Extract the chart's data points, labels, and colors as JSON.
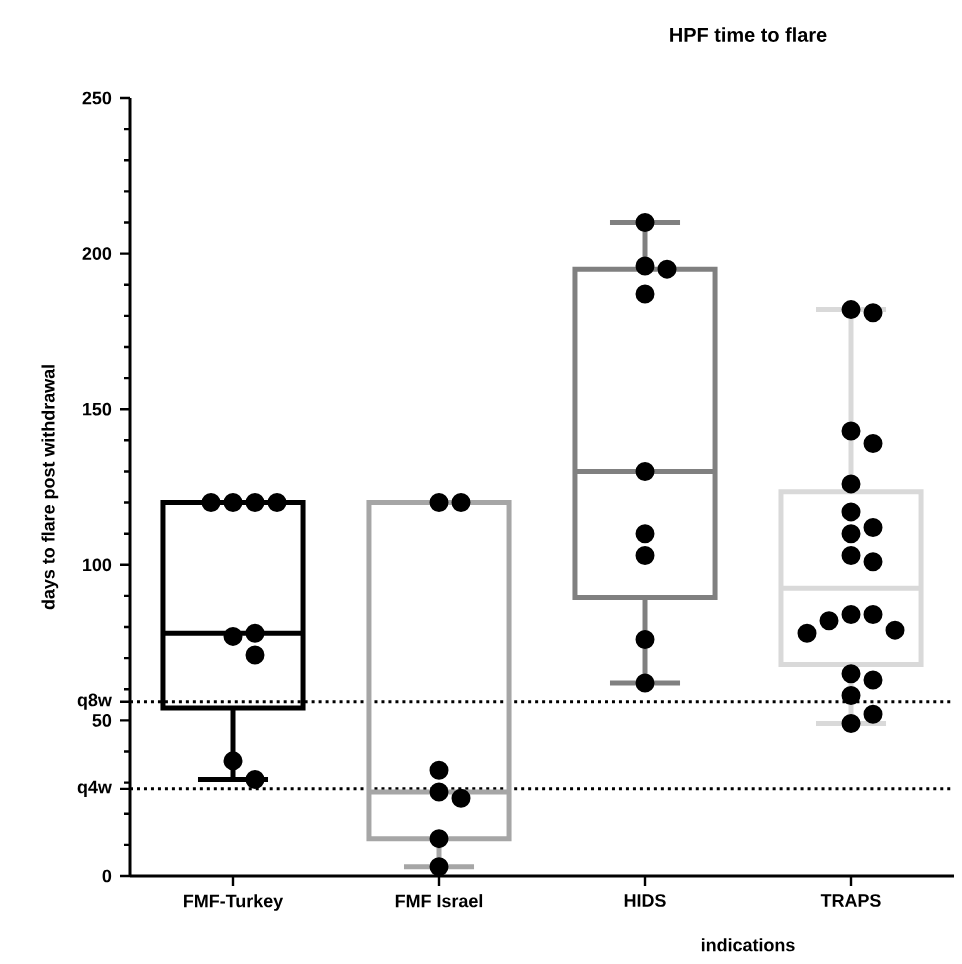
{
  "chart_data": {
    "type": "box",
    "title": "HPF time to flare",
    "xlabel": "indications",
    "ylabel": "days to flare post withdrawal",
    "categories": [
      "FMF-Turkey",
      "FMF Israel",
      "HIDS",
      "TRAPS"
    ],
    "ylim": [
      0,
      250
    ],
    "yticks": [
      0,
      {
        "value": 10,
        "label": null
      },
      {
        "value": 20,
        "label": null
      },
      {
        "value": 28,
        "label": "q4w"
      },
      {
        "value": 30,
        "label": null
      },
      {
        "value": 40,
        "label": null
      },
      50,
      {
        "value": 56,
        "label": "q8w"
      },
      {
        "value": 60,
        "label": null
      },
      {
        "value": 70,
        "label": null
      },
      {
        "value": 80,
        "label": null
      },
      {
        "value": 90,
        "label": null
      },
      100,
      {
        "value": 110,
        "label": null
      },
      {
        "value": 120,
        "label": null
      },
      {
        "value": 130,
        "label": null
      },
      {
        "value": 140,
        "label": null
      },
      150,
      {
        "value": 160,
        "label": null
      },
      {
        "value": 170,
        "label": null
      },
      {
        "value": 180,
        "label": null
      },
      {
        "value": 190,
        "label": null
      },
      200,
      {
        "value": 210,
        "label": null
      },
      {
        "value": 220,
        "label": null
      },
      {
        "value": 230,
        "label": null
      },
      {
        "value": 240,
        "label": null
      },
      250
    ],
    "series": [
      {
        "type": "box",
        "colors": [
          "#000000",
          "#a6a6a6",
          "#808080",
          "#d9d9d9"
        ],
        "boxes": [
          {
            "low": 31,
            "q1": 54,
            "median": 78,
            "q3": 120,
            "high": 120
          },
          {
            "low": 3,
            "q1": 12,
            "median": 27,
            "q3": 120,
            "high": 120
          },
          {
            "low": 62,
            "q1": 89.5,
            "median": 130,
            "q3": 195,
            "high": 210
          },
          {
            "low": 49,
            "q1": 68,
            "median": 92.5,
            "q3": 123.5,
            "high": 182
          }
        ]
      },
      {
        "type": "scatter",
        "color": "#000000",
        "x": [
          "FMF-Turkey",
          "FMF-Turkey",
          "FMF-Turkey",
          "FMF-Turkey",
          "FMF-Turkey",
          "FMF-Turkey",
          "FMF-Turkey",
          "FMF-Turkey",
          "FMF-Turkey",
          "FMF Israel",
          "FMF Israel",
          "FMF Israel",
          "FMF Israel",
          "FMF Israel",
          "FMF Israel",
          "FMF Israel",
          "HIDS",
          "HIDS",
          "HIDS",
          "HIDS",
          "HIDS",
          "HIDS",
          "HIDS",
          "HIDS",
          "HIDS",
          "TRAPS",
          "TRAPS",
          "TRAPS",
          "TRAPS",
          "TRAPS",
          "TRAPS",
          "TRAPS",
          "TRAPS",
          "TRAPS",
          "TRAPS",
          "TRAPS",
          "TRAPS",
          "TRAPS",
          "TRAPS",
          "TRAPS",
          "TRAPS",
          "TRAPS",
          "TRAPS",
          "TRAPS",
          "TRAPS"
        ],
        "values": [
          120,
          120,
          120,
          120,
          77,
          78,
          71,
          37,
          31,
          120,
          120,
          34,
          27,
          25,
          12,
          3,
          210,
          196,
          195,
          187,
          130,
          110,
          103,
          76,
          62,
          182,
          181,
          143,
          139,
          126,
          117,
          112,
          110,
          103,
          101,
          84,
          84,
          82,
          79,
          78,
          65,
          63,
          58,
          52,
          49
        ]
      }
    ],
    "ref_lines": [
      {
        "axis": "y",
        "value": 56,
        "line_style": "dotted",
        "color": "#000000"
      },
      {
        "axis": "y",
        "value": 28,
        "line_style": "dotted",
        "color": "#000000"
      }
    ]
  }
}
